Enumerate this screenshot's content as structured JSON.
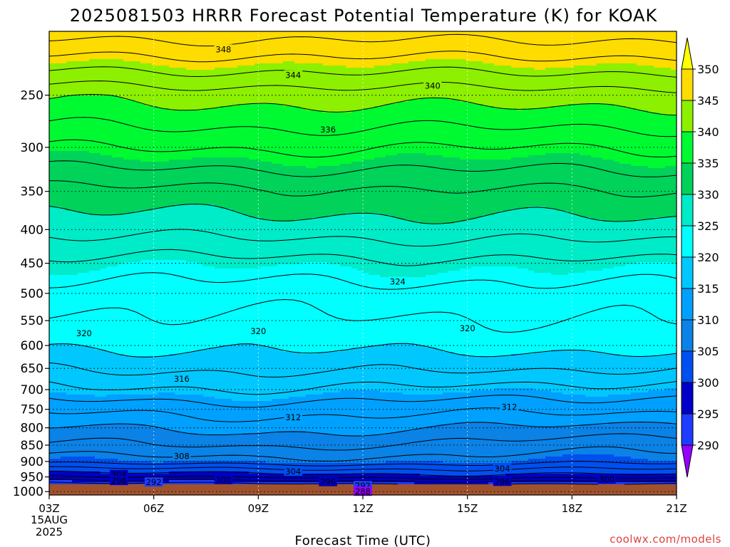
{
  "chart_data": {
    "type": "heatmap",
    "title": "2025081503 HRRR Forecast Potential Temperature (K) for KOAK",
    "xlabel": "Forecast Time (UTC)",
    "x_ticks": [
      "03Z",
      "06Z",
      "09Z",
      "12Z",
      "15Z",
      "18Z",
      "21Z"
    ],
    "x_date_line1": "15AUG",
    "x_date_line2": "2025",
    "xlim_hours": [
      3,
      21
    ],
    "y_ticks": [
      250,
      300,
      350,
      400,
      450,
      500,
      550,
      600,
      650,
      700,
      750,
      800,
      850,
      900,
      950,
      1000
    ],
    "ylim_hpa": [
      1012,
      200
    ],
    "y_scale": "log-pressure",
    "grid": "dotted",
    "colorbar": {
      "levels": [
        290,
        295,
        300,
        305,
        310,
        315,
        320,
        325,
        330,
        335,
        340,
        345,
        350
      ],
      "colors": [
        "#9600fe",
        "#1e3cff",
        "#0000c8",
        "#0050f0",
        "#0a82e6",
        "#00a0ff",
        "#00c8ff",
        "#00ffff",
        "#00ebc8",
        "#00d25a",
        "#00fa32",
        "#8cf000",
        "#ffdc00",
        "#ffff00"
      ]
    },
    "theta_profiles": [
      {
        "hour": 3,
        "p": [
          1000,
          950,
          900,
          850,
          800,
          750,
          700,
          650,
          600,
          550,
          500,
          450,
          400,
          350,
          300,
          250,
          200
        ],
        "theta": [
          287.5,
          297.5,
          304.5,
          307.5,
          309.8,
          312.4,
          315.6,
          318.0,
          320.2,
          321.5,
          322.8,
          325.2,
          328.6,
          331.4,
          336.0,
          340.5,
          349.0
        ]
      },
      {
        "hour": 9,
        "p": [
          1000,
          950,
          900,
          850,
          800,
          750,
          700,
          650,
          600,
          550,
          500,
          450,
          400,
          350,
          300,
          250,
          200
        ],
        "theta": [
          288.5,
          298.5,
          305.5,
          308.5,
          310.8,
          313.0,
          316.0,
          318.5,
          320.4,
          321.7,
          323.0,
          325.3,
          328.8,
          331.6,
          336.3,
          340.8,
          349.0
        ]
      },
      {
        "hour": 15,
        "p": [
          1000,
          950,
          900,
          850,
          800,
          750,
          700,
          650,
          600,
          550,
          500,
          450,
          400,
          350,
          300,
          250,
          200
        ],
        "theta": [
          289.0,
          299.0,
          305.0,
          307.5,
          310.0,
          312.5,
          315.4,
          318.3,
          320.5,
          321.8,
          323.1,
          325.5,
          329.0,
          331.8,
          336.0,
          341.0,
          349.0
        ]
      },
      {
        "hour": 21,
        "p": [
          1000,
          950,
          900,
          850,
          800,
          750,
          700,
          650,
          600,
          550,
          500,
          450,
          400,
          350,
          300,
          250,
          200
        ],
        "theta": [
          288.5,
          299.0,
          304.5,
          306.5,
          309.0,
          312.5,
          315.0,
          318.0,
          320.8,
          322.0,
          323.2,
          325.6,
          329.2,
          332.0,
          336.2,
          341.0,
          349.0
        ]
      }
    ],
    "contour_labels": [
      {
        "text": "348",
        "hour": 8.0,
        "p": 213
      },
      {
        "text": "344",
        "hour": 10.0,
        "p": 233
      },
      {
        "text": "340",
        "hour": 14.0,
        "p": 242
      },
      {
        "text": "336",
        "hour": 11.0,
        "p": 282
      },
      {
        "text": "324",
        "hour": 13.0,
        "p": 480
      },
      {
        "text": "320",
        "hour": 4.0,
        "p": 575
      },
      {
        "text": "320",
        "hour": 9.0,
        "p": 571
      },
      {
        "text": "320",
        "hour": 15.0,
        "p": 565
      },
      {
        "text": "316",
        "hour": 6.8,
        "p": 674
      },
      {
        "text": "312",
        "hour": 10.0,
        "p": 771
      },
      {
        "text": "312",
        "hour": 16.2,
        "p": 744
      },
      {
        "text": "308",
        "hour": 6.8,
        "p": 883
      },
      {
        "text": "304",
        "hour": 5.0,
        "p": 943
      },
      {
        "text": "304",
        "hour": 10.0,
        "p": 932
      },
      {
        "text": "304",
        "hour": 16.0,
        "p": 923
      },
      {
        "text": "300",
        "hour": 8.0,
        "p": 960
      },
      {
        "text": "300",
        "hour": 19.0,
        "p": 958
      },
      {
        "text": "296",
        "hour": 5.0,
        "p": 963
      },
      {
        "text": "296",
        "hour": 11.0,
        "p": 967
      },
      {
        "text": "296",
        "hour": 16.0,
        "p": 966
      },
      {
        "text": "292",
        "hour": 6.0,
        "p": 968
      },
      {
        "text": "292",
        "hour": 12.0,
        "p": 980
      },
      {
        "text": "288",
        "hour": 12.0,
        "p": 1000
      }
    ],
    "ground_color": "#a0522d"
  },
  "credit": "coolwx.com/models"
}
